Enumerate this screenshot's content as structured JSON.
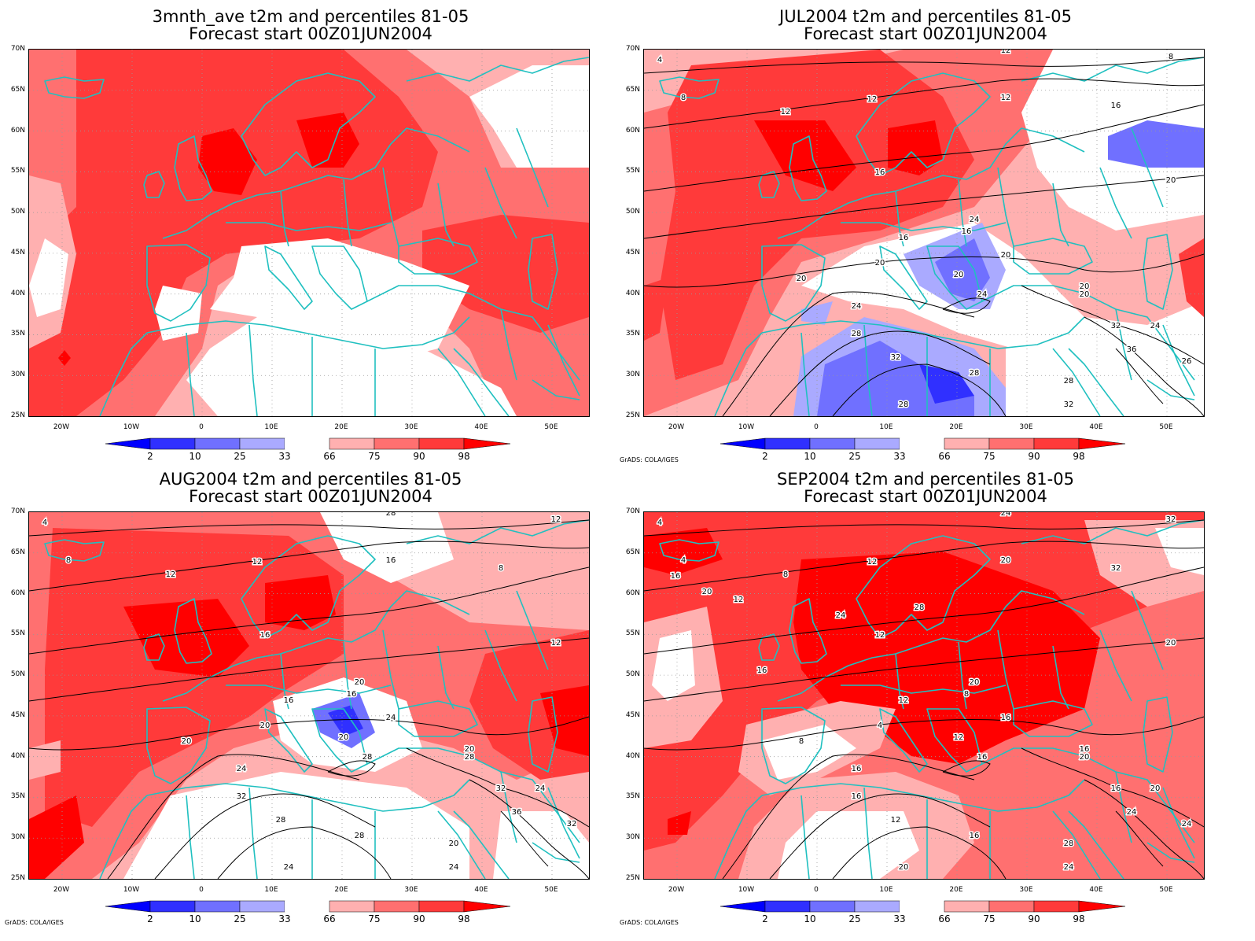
{
  "panels": [
    {
      "title1": "3mnth_ave t2m and percentiles 81-05",
      "title2": "Forecast start 00Z01JUN2004",
      "credit": ""
    },
    {
      "title1": "JUL2004 t2m and percentiles 81-05",
      "title2": "Forecast start 00Z01JUN2004",
      "credit": "GrADS: COLA/IGES"
    },
    {
      "title1": "AUG2004 t2m and percentiles 81-05",
      "title2": "Forecast start 00Z01JUN2004",
      "credit": "GrADS: COLA/IGES"
    },
    {
      "title1": "SEP2004 t2m and percentiles 81-05",
      "title2": "Forecast start 00Z01JUN2004",
      "credit": "GrADS: COLA/IGES"
    }
  ],
  "lat_labels": [
    "70N",
    "65N",
    "60N",
    "55N",
    "50N",
    "45N",
    "40N",
    "35N",
    "30N",
    "25N"
  ],
  "lon_labels": [
    "20W",
    "10W",
    "0",
    "10E",
    "20E",
    "30E",
    "40E",
    "50E"
  ],
  "legend": {
    "labels": [
      "2",
      "10",
      "25",
      "33",
      "66",
      "75",
      "90",
      "98"
    ],
    "colors": {
      "below_2": "#0000ff",
      "p2_10": "#3030ff",
      "p10_25": "#7070ff",
      "p25_33": "#aaaaff",
      "p33_66": "#ffffff",
      "p66_75": "#ffb0b0",
      "p75_90": "#ff7070",
      "p90_98": "#ff3a3a",
      "above_98": "#ff0000"
    }
  },
  "coastline_color": "#20c0c0",
  "contour_labels": {
    "jul": [
      "4",
      "8",
      "12",
      "12",
      "16",
      "16",
      "16",
      "20",
      "20",
      "20",
      "20",
      "24",
      "24",
      "28",
      "32",
      "28",
      "28",
      "24",
      "20",
      "20",
      "32",
      "24",
      "36",
      "26",
      "28",
      "32",
      "12",
      "8",
      "16",
      "20",
      "12"
    ],
    "aug": [
      "4",
      "8",
      "12",
      "12",
      "16",
      "16",
      "16",
      "20",
      "20",
      "20",
      "24",
      "24",
      "28",
      "32",
      "28",
      "28",
      "24",
      "20",
      "20",
      "28",
      "32",
      "24",
      "36",
      "32",
      "20",
      "24",
      "28",
      "12",
      "8",
      "12",
      "16"
    ],
    "sep": [
      "4",
      "4",
      "8",
      "12",
      "12",
      "8",
      "12",
      "4",
      "8",
      "12",
      "16",
      "16",
      "16",
      "16",
      "12",
      "16",
      "20",
      "20",
      "16",
      "20",
      "16",
      "20",
      "24",
      "24",
      "28",
      "24",
      "24",
      "32",
      "32",
      "20",
      "20",
      "16",
      "20",
      "12",
      "16",
      "24",
      "28"
    ]
  }
}
